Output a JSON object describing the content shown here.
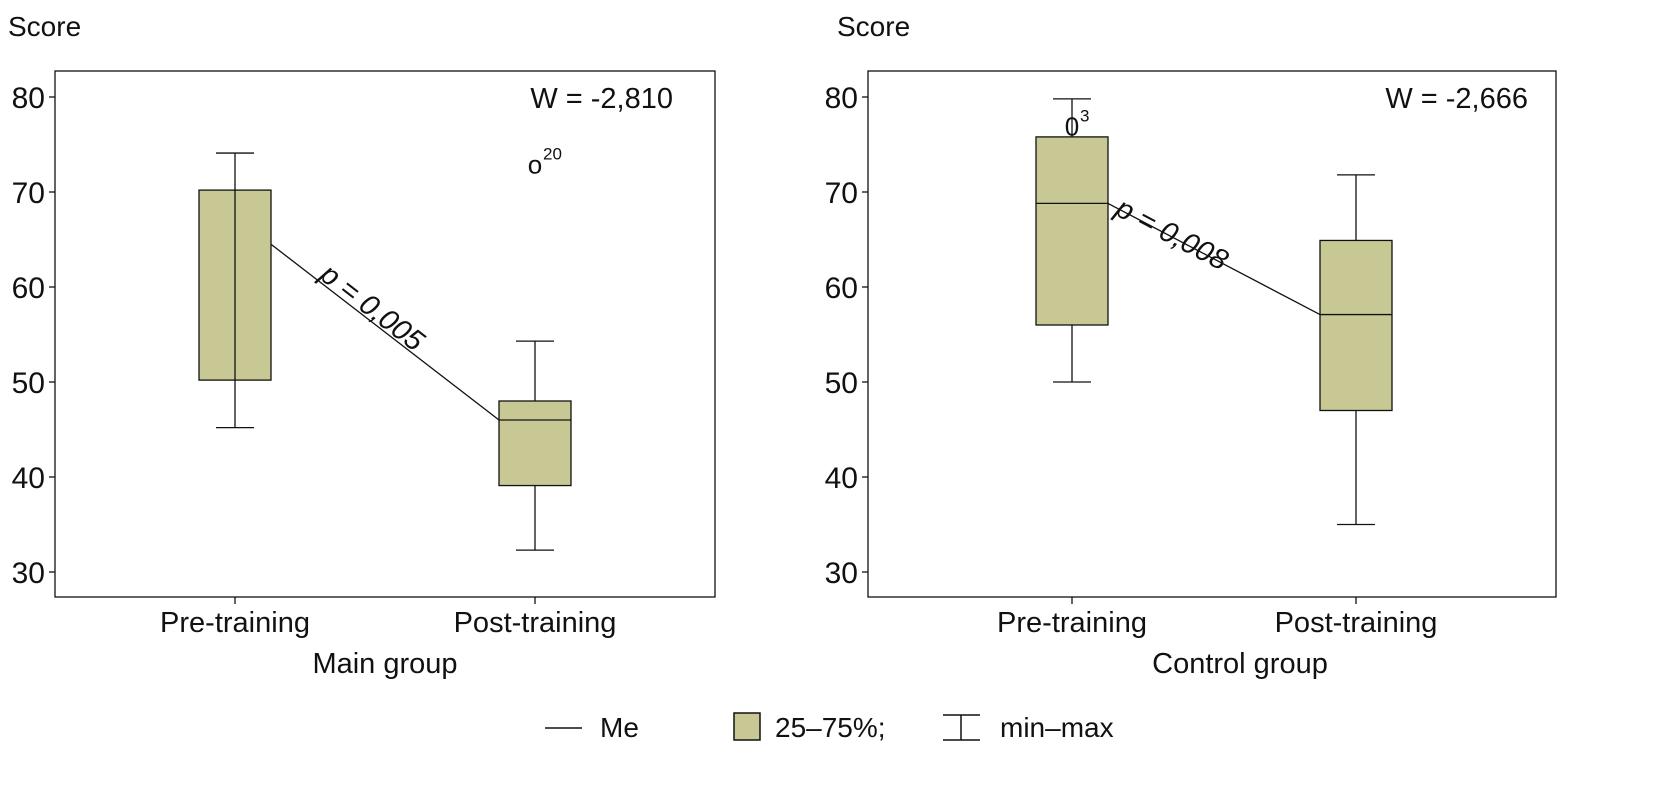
{
  "chart_data": [
    {
      "type": "boxplot",
      "ylabel": "Score",
      "xlabel": "Main group",
      "ylim": [
        27,
        82
      ],
      "yticks": [
        30,
        40,
        50,
        60,
        70,
        80
      ],
      "categories": [
        "Pre-training",
        "Post-training"
      ],
      "boxes": [
        {
          "category": "Pre-training",
          "min": 45.2,
          "q1": 50.2,
          "median": 64.5,
          "q3": 70.2,
          "max": 74.1
        },
        {
          "category": "Post-training",
          "min": 32.3,
          "q1": 39.1,
          "median": 46.0,
          "q3": 48.0,
          "max": 54.3
        }
      ],
      "outliers": [
        {
          "category": "Post-training",
          "value": 73,
          "label": "o",
          "id": "20"
        }
      ],
      "annotation_w": "W = -2,810",
      "annotation_p": "p = 0,005"
    },
    {
      "type": "boxplot",
      "ylabel": "Score",
      "xlabel": "Control group",
      "ylim": [
        27,
        82
      ],
      "yticks": [
        30,
        40,
        50,
        60,
        70,
        80
      ],
      "categories": [
        "Pre-training",
        "Post-training"
      ],
      "boxes": [
        {
          "category": "Pre-training",
          "min": 50.0,
          "q1": 56.0,
          "median": 68.8,
          "q3": 75.8,
          "max": 79.8
        },
        {
          "category": "Post-training",
          "min": 35.0,
          "q1": 47.0,
          "median": 57.1,
          "q3": 64.9,
          "max": 71.8
        }
      ],
      "outliers": [
        {
          "category": "Pre-training",
          "value": 77,
          "label": "0",
          "id": "3"
        }
      ],
      "annotation_w": "W = -2,666",
      "annotation_p": "p = 0,008"
    }
  ],
  "legend": {
    "median_label": "Me",
    "box_label": "25–75%;",
    "whisker_label": "min–max"
  },
  "colors": {
    "box_fill": "#c8c895",
    "stroke": "#111111"
  }
}
